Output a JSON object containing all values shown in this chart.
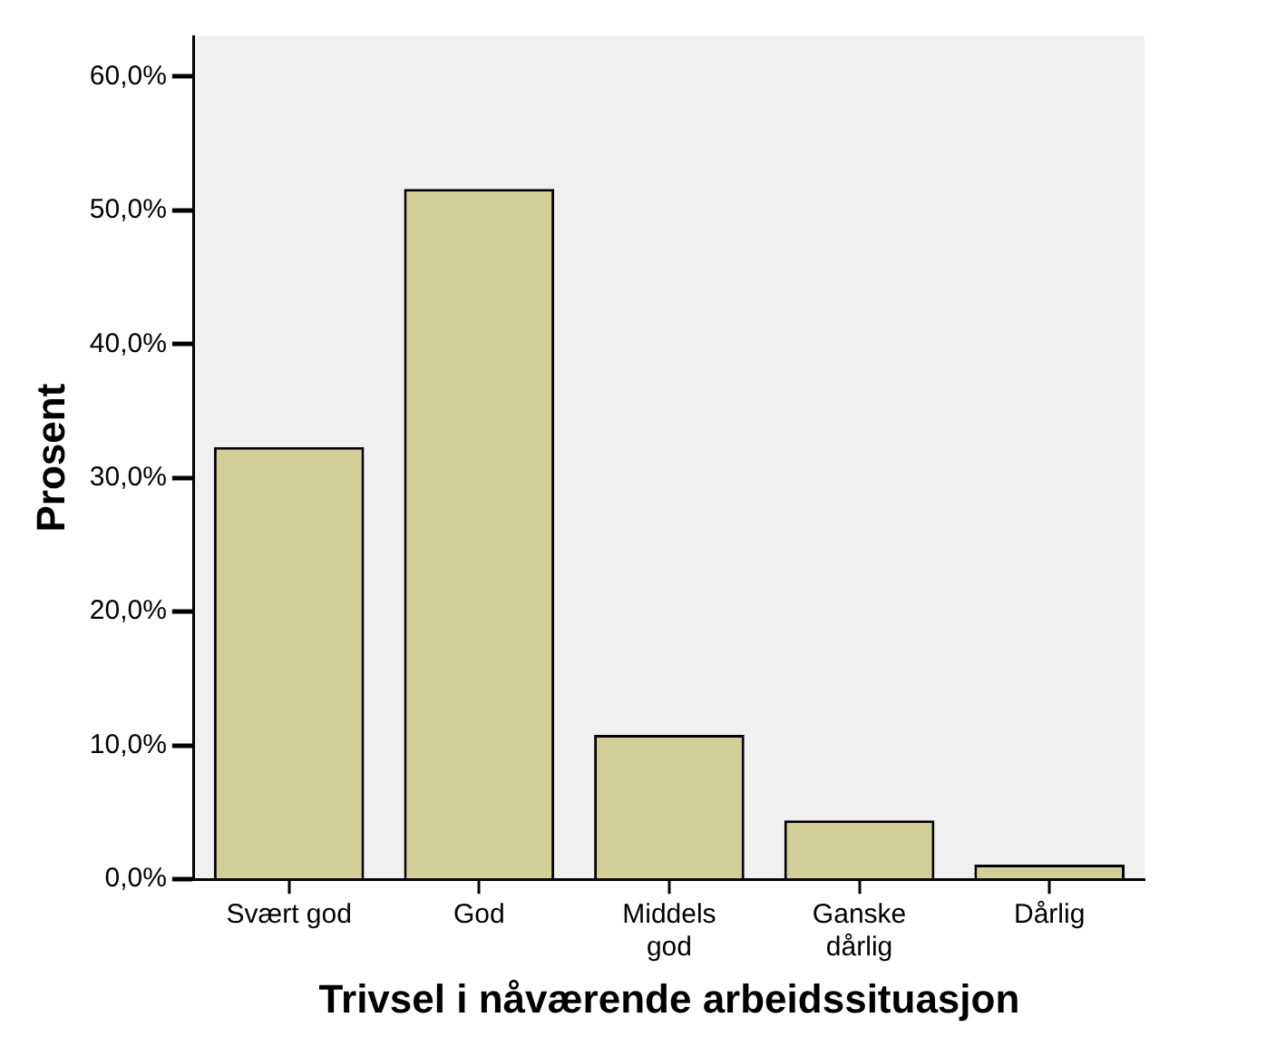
{
  "chart_data": {
    "type": "bar",
    "xlabel": "Trivsel i nåværende arbeidssituasjon",
    "ylabel": "Prosent",
    "categories": [
      "Svært god",
      "God",
      "Middels\ngod",
      "Ganske\ndårlig",
      "Dårlig"
    ],
    "values": [
      32.3,
      51.6,
      10.8,
      4.4,
      1.1
    ],
    "color": "#d3cf98",
    "ylim": [
      0,
      63
    ],
    "yticks": [
      {
        "value": 0,
        "label": "0,0%"
      },
      {
        "value": 10,
        "label": "10,0%"
      },
      {
        "value": 20,
        "label": "20,0%"
      },
      {
        "value": 30,
        "label": "30,0%"
      },
      {
        "value": 40,
        "label": "40,0%"
      },
      {
        "value": 50,
        "label": "50,0%"
      },
      {
        "value": 60,
        "label": "60,0%"
      }
    ],
    "grid": false,
    "legend": false
  }
}
